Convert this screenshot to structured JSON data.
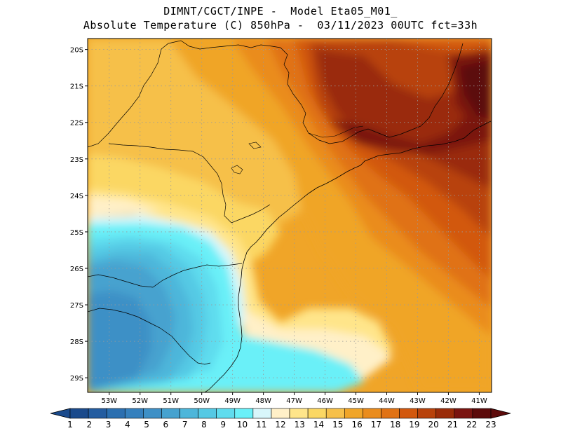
{
  "title": {
    "line1": "DIMNT/CGCT/INPE -  Model Eta05_M01_",
    "line2": "Absolute Temperature (C) 850hPa -  03/11/2023 00UTC fct=33h"
  },
  "map": {
    "lat_labels": [
      "20S",
      "21S",
      "22S",
      "23S",
      "24S",
      "25S",
      "26S",
      "27S",
      "28S",
      "29S"
    ],
    "lon_labels": [
      "53W",
      "52W",
      "51W",
      "50W",
      "49W",
      "48W",
      "47W",
      "46W",
      "45W",
      "44W",
      "43W",
      "42W",
      "41W"
    ],
    "lat_values": [
      -20,
      -21,
      -22,
      -23,
      -24,
      -25,
      -26,
      -27,
      -28,
      -29
    ],
    "lon_values": [
      -53,
      -52,
      -51,
      -50,
      -49,
      -48,
      -47,
      -46,
      -45,
      -44,
      -43,
      -42,
      -41
    ],
    "lon_range": [
      -53.7,
      -40.6
    ],
    "lat_range": [
      -29.4,
      -19.7
    ],
    "grid": true
  },
  "colorbar": {
    "labels": [
      "1",
      "2",
      "3",
      "4",
      "5",
      "6",
      "7",
      "8",
      "9",
      "10",
      "11",
      "12",
      "13",
      "14",
      "15",
      "16",
      "17",
      "18",
      "19",
      "20",
      "21",
      "22",
      "23"
    ],
    "colors": [
      "#1a4a8c",
      "#235ca0",
      "#2b6fb0",
      "#3580bd",
      "#3e90c6",
      "#46a2cf",
      "#4db6da",
      "#55c9e4",
      "#5fdcee",
      "#6af0f8",
      "#d8f6fb",
      "#fff0c8",
      "#ffe58a",
      "#fbd763",
      "#f6c04a",
      "#f0a528",
      "#ea8c1c",
      "#e07214",
      "#d2580e",
      "#b8420b",
      "#9a2c09",
      "#7a1410",
      "#5c0a0a"
    ],
    "under_color": "#1a4a8c",
    "over_color": "#5c0a0a"
  },
  "field": {
    "description": "",
    "bands": [
      {
        "level": 15,
        "color": "#f6c04a"
      },
      {
        "level": 16,
        "color": "#f0a528"
      },
      {
        "level": 17,
        "color": "#ea8c1c"
      },
      {
        "level": 18,
        "color": "#e07214"
      },
      {
        "level": 19,
        "color": "#d2580e"
      },
      {
        "level": 20,
        "color": "#b8420b"
      },
      {
        "level": 21,
        "color": "#9a2c09"
      },
      {
        "level": 22,
        "color": "#7a1410"
      },
      {
        "level": 23,
        "color": "#5c0a0a"
      },
      {
        "level": 14,
        "color": "#fbd763"
      },
      {
        "level": 13,
        "color": "#ffe58a"
      },
      {
        "level": 12,
        "color": "#fff0c8"
      },
      {
        "level": 11,
        "color": "#d8f6fb"
      },
      {
        "level": 10,
        "color": "#6af0f8"
      },
      {
        "level": 9,
        "color": "#5fdcee"
      },
      {
        "level": 8,
        "color": "#55c9e4"
      },
      {
        "level": 7,
        "color": "#4db6da"
      },
      {
        "level": 6,
        "color": "#46a2cf"
      },
      {
        "level": 5,
        "color": "#3e90c6"
      }
    ]
  }
}
